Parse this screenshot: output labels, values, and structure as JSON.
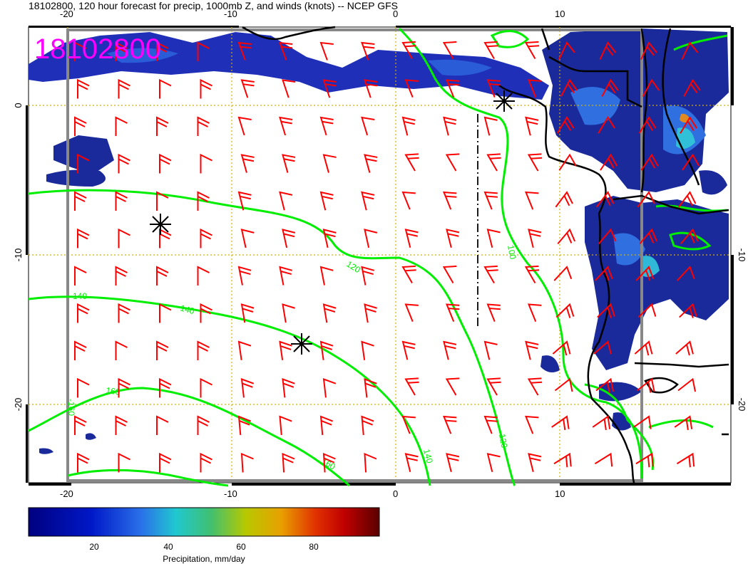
{
  "title": "18102800, 120 hour forecast for precip, 1000mb Z, and winds (knots) -- NCEP GFS",
  "stamp": "18102800",
  "top_ticks": [
    "-20",
    "-10",
    "0",
    "10"
  ],
  "bottom_ticks": [
    "-20",
    "-10",
    "0",
    "10"
  ],
  "left_ticks": [
    "0",
    "-10",
    "-20"
  ],
  "right_ticks": [
    "-10",
    "-20"
  ],
  "contour_labels": [
    "120",
    "140",
    "-140",
    "160",
    "-160",
    "100",
    "120",
    "140",
    "160"
  ],
  "colorbar": {
    "ticks": [
      "20",
      "40",
      "60",
      "80"
    ],
    "label": "Precipitation, mm/day"
  },
  "colors": {
    "contour": "#00ee00",
    "barb": "#ff0000",
    "stamp": "#ff00ff",
    "grid": "#d4b000",
    "land_border": "#000000"
  }
}
